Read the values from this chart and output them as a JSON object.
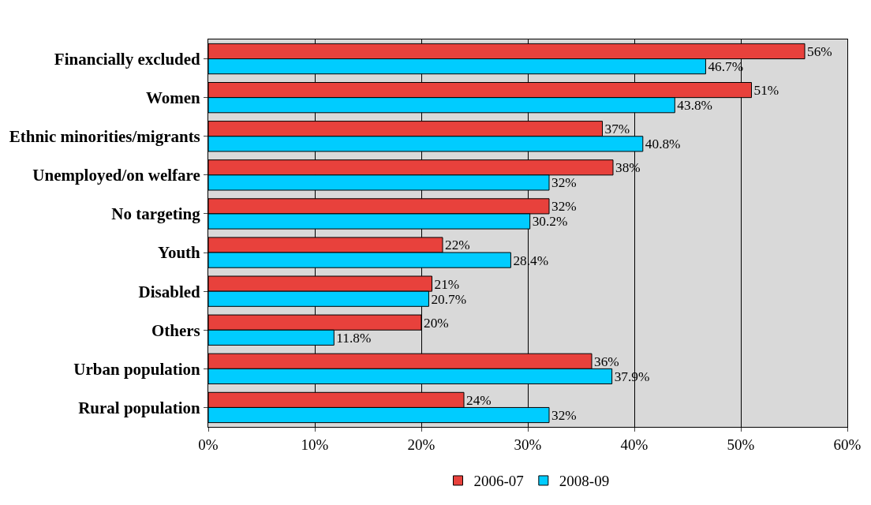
{
  "chart_data": {
    "type": "bar",
    "orientation": "horizontal",
    "categories": [
      "Financially excluded",
      "Women",
      "Ethnic minorities/migrants",
      "Unemployed/on welfare",
      "No targeting",
      "Youth",
      "Disabled",
      "Others",
      "Urban population",
      "Rural population"
    ],
    "series": [
      {
        "name": "2006-07",
        "color": "#e8413c",
        "values": [
          56,
          51,
          37,
          38,
          32,
          22,
          21,
          20,
          36,
          24
        ],
        "value_labels": [
          "56%",
          "51%",
          "37%",
          "38%",
          "32%",
          "22%",
          "21%",
          "20%",
          "36%",
          "24%"
        ]
      },
      {
        "name": "2008-09",
        "color": "#00ccff",
        "values": [
          46.7,
          43.8,
          40.8,
          32,
          30.2,
          28.4,
          20.7,
          11.8,
          37.9,
          32
        ],
        "value_labels": [
          "46.7%",
          "43.8%",
          "40.8%",
          "32%",
          "30.2%",
          "28.4%",
          "20.7%",
          "11.8%",
          "37.9%",
          "32%"
        ]
      }
    ],
    "xlim": [
      0,
      60
    ],
    "xticks": [
      {
        "value": 0,
        "label": "0%"
      },
      {
        "value": 10,
        "label": "10%"
      },
      {
        "value": 20,
        "label": "20%"
      },
      {
        "value": 30,
        "label": "30%"
      },
      {
        "value": 40,
        "label": "40%"
      },
      {
        "value": 50,
        "label": "50%"
      },
      {
        "value": 60,
        "label": "60%"
      }
    ],
    "grid": "x",
    "legend": "bottom"
  }
}
